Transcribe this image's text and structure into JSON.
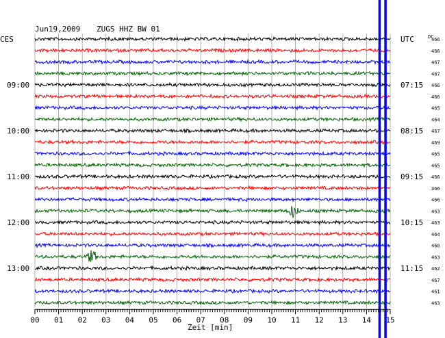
{
  "header": {
    "date": "Jun19,2009",
    "station": "ZUGS HHZ BW 01",
    "left_tz": "CES",
    "right_tz": "UTC",
    "dc_label": "DC"
  },
  "chart_data": {
    "type": "line",
    "title": "Jun19,2009  ZUGS HHZ BW 01",
    "xlabel": "Zeit [min]",
    "x_ticks": [
      "00",
      "01",
      "02",
      "03",
      "04",
      "05",
      "06",
      "07",
      "08",
      "09",
      "10",
      "11",
      "12",
      "13",
      "14",
      "15"
    ],
    "xlim": [
      0,
      15
    ],
    "left_time_labels": [
      {
        "row": 4,
        "label": "09:00"
      },
      {
        "row": 8,
        "label": "10:00"
      },
      {
        "row": 12,
        "label": "11:00"
      },
      {
        "row": 16,
        "label": "12:00"
      },
      {
        "row": 20,
        "label": "13:00"
      }
    ],
    "right_time_labels": [
      {
        "row": 0,
        "label": "UTC"
      },
      {
        "row": 4,
        "label": "07:15"
      },
      {
        "row": 8,
        "label": "08:15"
      },
      {
        "row": 12,
        "label": "09:15"
      },
      {
        "row": 16,
        "label": "10:15"
      },
      {
        "row": 20,
        "label": "11:15"
      }
    ],
    "trace_colors": [
      "#000000",
      "#ff0000",
      "#0000ff",
      "#006400"
    ],
    "dc_values": [
      466,
      466,
      467,
      467,
      466,
      466,
      465,
      464,
      467,
      469,
      465,
      465,
      466,
      466,
      466,
      463,
      463,
      464,
      460,
      463,
      462,
      467,
      461,
      463
    ],
    "events": [
      {
        "row": 15,
        "minute": 10.9,
        "note": "small local event"
      },
      {
        "row": 19,
        "minute": 2.4,
        "note": "minor spike"
      }
    ],
    "overlay_lines_minutes": [
      14.55,
      14.8
    ]
  }
}
